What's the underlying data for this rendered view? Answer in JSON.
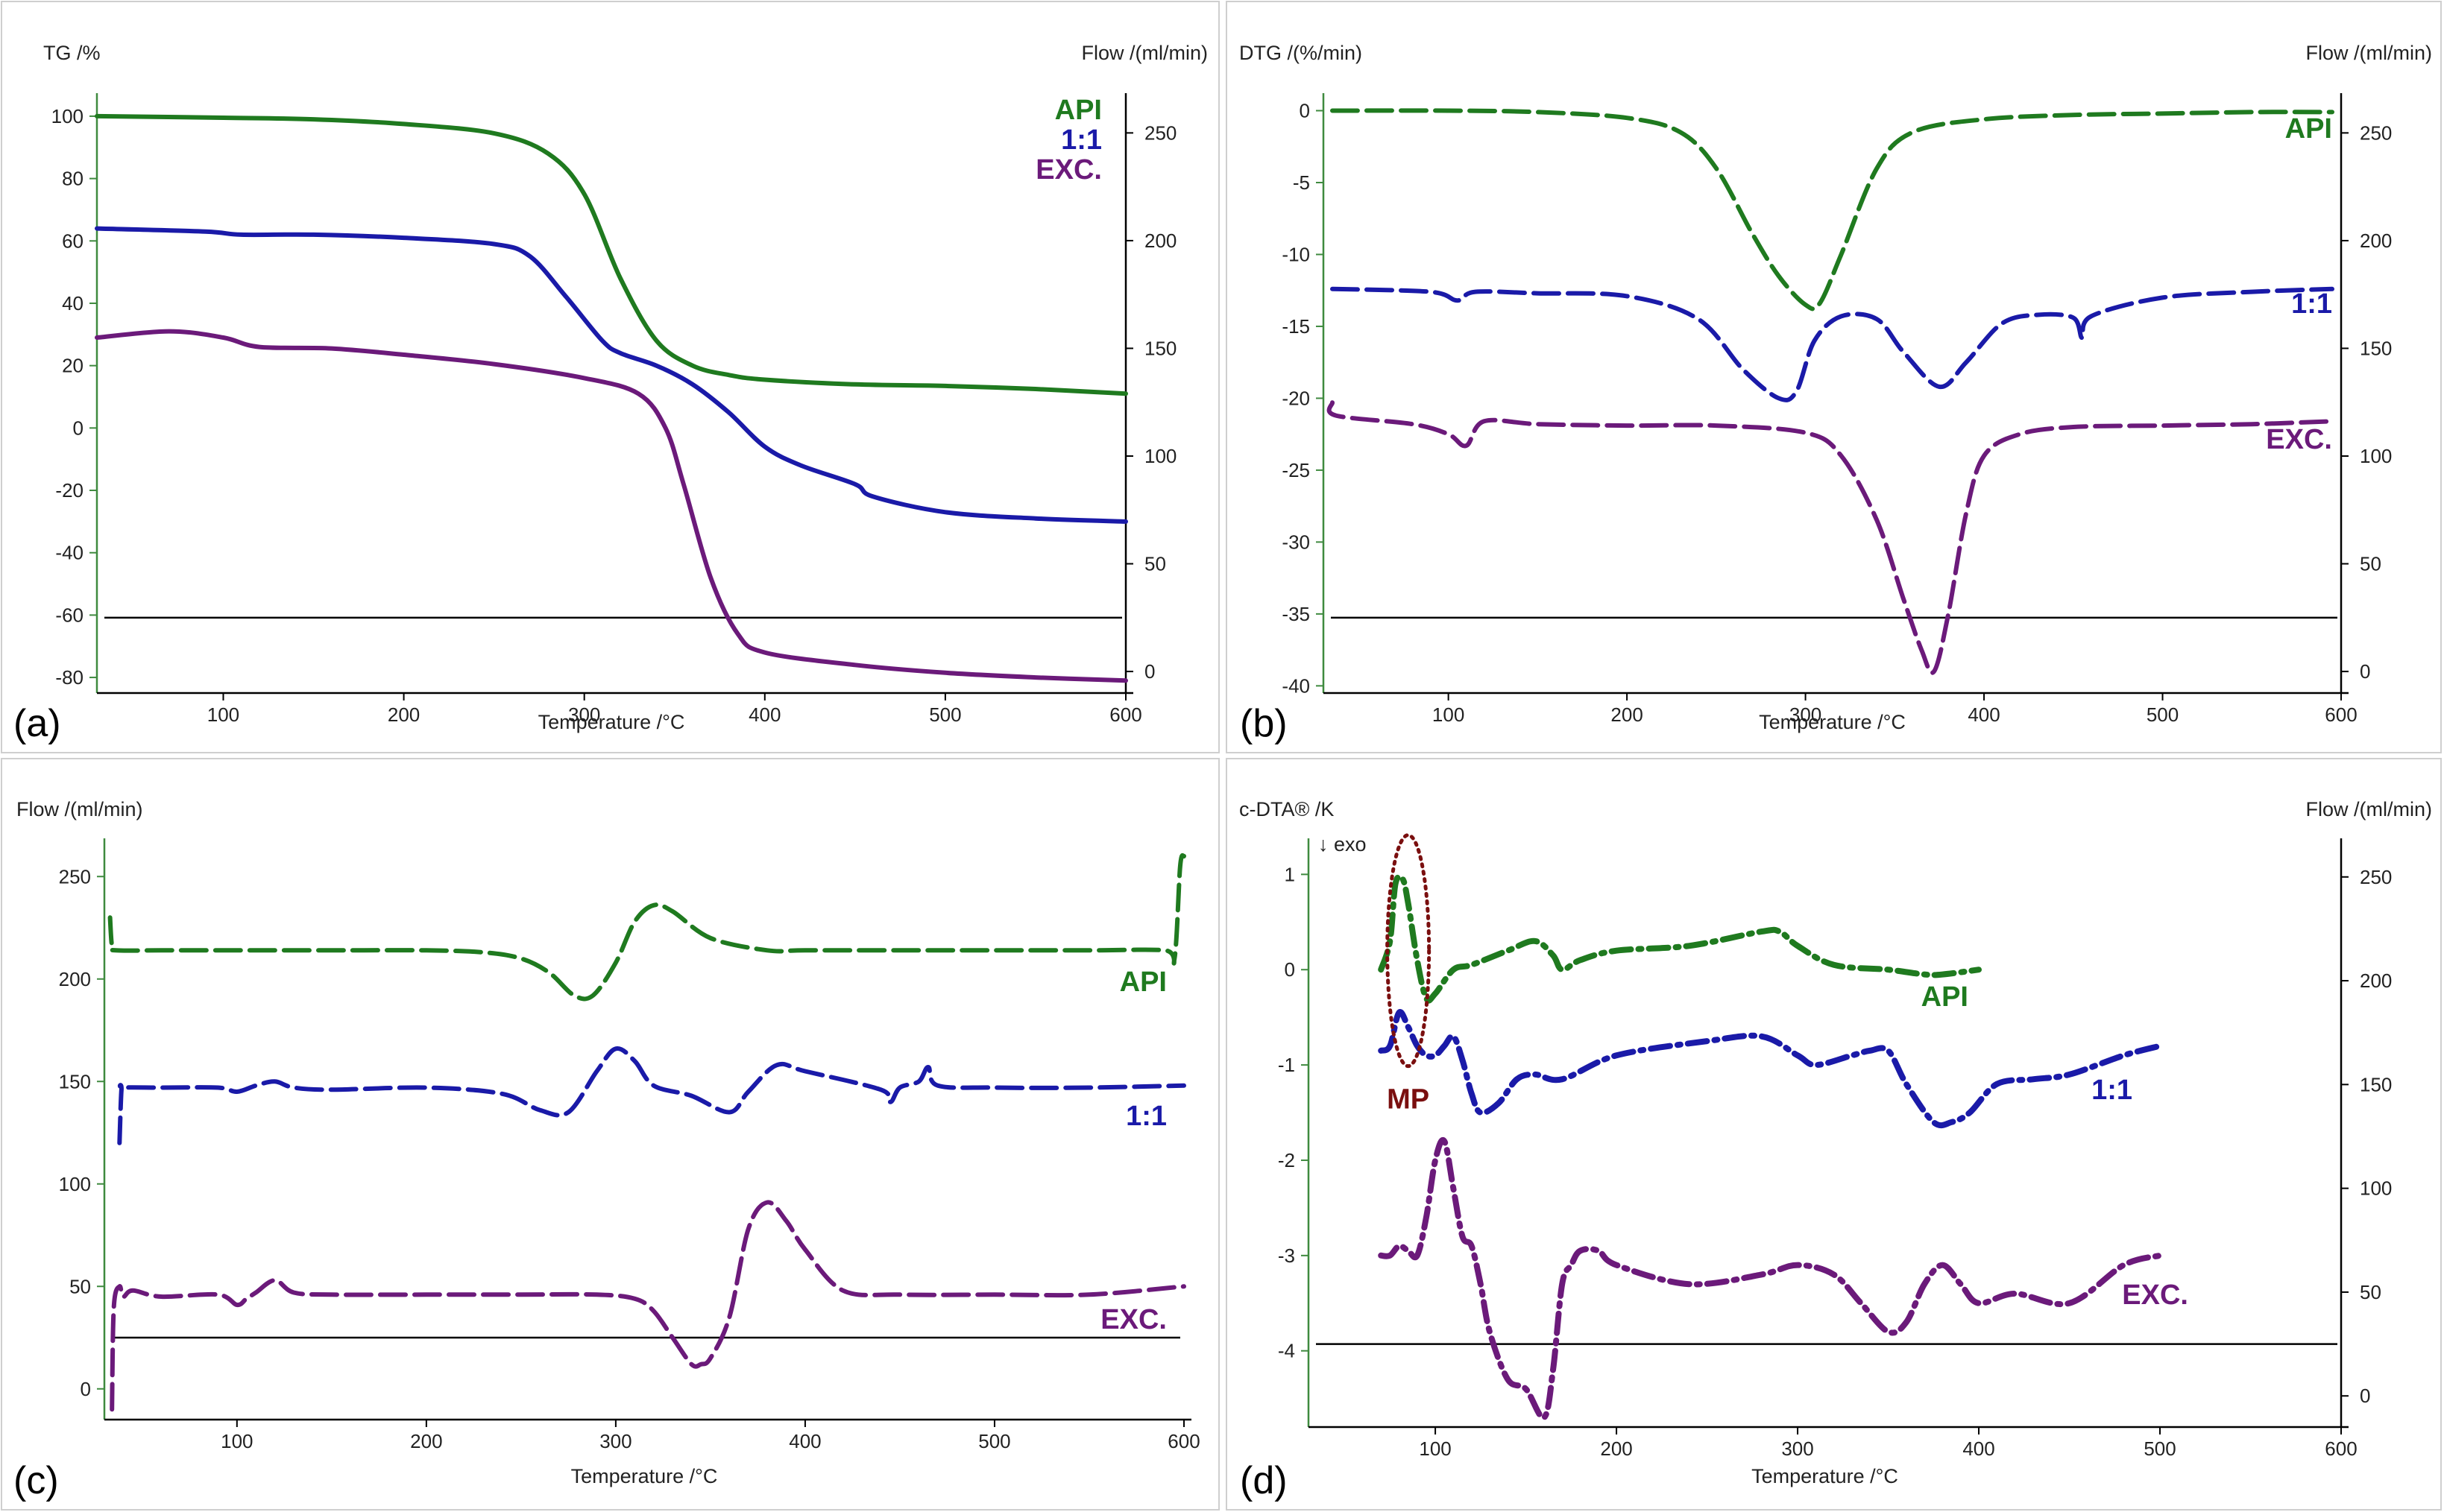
{
  "colors": {
    "api": "#1f7a1f",
    "mix": "#1a1aa8",
    "exc": "#6b1a7a",
    "mp": "#7a0f0f"
  },
  "chart_data": [
    {
      "type": "line",
      "panel_label": "(a)",
      "ylabel_left": "TG /%",
      "ylabel_right": "Flow /(ml/min)",
      "xlabel": "Temperature /°C",
      "xlim": [
        30,
        600
      ],
      "ylim_left": [
        -85,
        105
      ],
      "ylim_right": [
        -10,
        265
      ],
      "xticks": [
        100,
        200,
        300,
        400,
        500,
        600
      ],
      "yticks_left": [
        100,
        80,
        60,
        40,
        20,
        0,
        -20,
        -40,
        -60,
        -80
      ],
      "yticks_right": [
        250,
        200,
        150,
        100,
        50,
        0
      ],
      "flow_baseline": 25,
      "legend": [
        "API",
        "1:1",
        "EXC."
      ],
      "series": [
        {
          "name": "API",
          "key": "api",
          "style": "solid",
          "x": [
            30,
            100,
            150,
            200,
            250,
            280,
            300,
            320,
            340,
            360,
            380,
            400,
            450,
            500,
            550,
            600
          ],
          "y": [
            100,
            99.5,
            99,
            97.5,
            94.5,
            88,
            75,
            48,
            28,
            20,
            17,
            15.5,
            14,
            13.5,
            12.5,
            11
          ]
        },
        {
          "name": "1:1",
          "key": "mix",
          "style": "solid",
          "x": [
            30,
            90,
            110,
            150,
            200,
            250,
            270,
            290,
            310,
            320,
            340,
            360,
            380,
            400,
            420,
            450,
            460,
            500,
            550,
            600
          ],
          "y": [
            64,
            63,
            62,
            62,
            61,
            59,
            55,
            42,
            28,
            24,
            20,
            14,
            5,
            -6,
            -12,
            -18,
            -22,
            -27,
            -29,
            -30
          ]
        },
        {
          "name": "EXC.",
          "key": "exc",
          "style": "solid",
          "x": [
            30,
            70,
            100,
            120,
            160,
            200,
            250,
            300,
            330,
            345,
            355,
            370,
            385,
            400,
            450,
            500,
            550,
            600
          ],
          "y": [
            29,
            31,
            29,
            26,
            25.5,
            23.5,
            20.5,
            16,
            11,
            0,
            -18,
            -48,
            -66,
            -72,
            -76,
            -78.5,
            -80,
            -81
          ]
        }
      ]
    },
    {
      "type": "line",
      "panel_label": "(b)",
      "ylabel_left": "DTG /(%/min)",
      "ylabel_right": "Flow /(ml/min)",
      "xlabel": "Temperature /°C",
      "xlim": [
        30,
        600
      ],
      "ylim_left": [
        -40.5,
        0.7
      ],
      "ylim_right": [
        -10,
        265
      ],
      "xticks": [
        100,
        200,
        300,
        400,
        500,
        600
      ],
      "yticks_left": [
        0,
        -5,
        -10,
        -15,
        -20,
        -25,
        -30,
        -35,
        -40
      ],
      "yticks_right": [
        250,
        200,
        150,
        100,
        50,
        0
      ],
      "flow_baseline": 25,
      "legend": [
        "API",
        "1:1",
        "EXC."
      ],
      "series": [
        {
          "name": "API",
          "key": "api",
          "style": "dashed",
          "x": [
            35,
            100,
            150,
            200,
            230,
            250,
            270,
            285,
            300,
            308,
            320,
            340,
            360,
            400,
            450,
            500,
            550,
            595
          ],
          "y": [
            0,
            0,
            -0.1,
            -0.5,
            -1.5,
            -4,
            -8.5,
            -11.5,
            -13.5,
            -13.4,
            -10,
            -4,
            -1.5,
            -0.6,
            -0.3,
            -0.2,
            -0.1,
            -0.1
          ]
        },
        {
          "name": "1:1",
          "key": "mix",
          "style": "dashed",
          "x": [
            35,
            90,
            105,
            115,
            150,
            200,
            240,
            265,
            285,
            295,
            305,
            320,
            340,
            355,
            375,
            390,
            410,
            430,
            450,
            455,
            460,
            500,
            550,
            595
          ],
          "y": [
            -12.4,
            -12.6,
            -13.2,
            -12.6,
            -12.7,
            -12.9,
            -14.5,
            -18,
            -20,
            -19.5,
            -16,
            -14.3,
            -14.5,
            -16.8,
            -19.2,
            -17.5,
            -14.8,
            -14.2,
            -14.4,
            -15.8,
            -14.3,
            -13,
            -12.6,
            -12.4
          ]
        },
        {
          "name": "EXC.",
          "key": "exc",
          "style": "dashed",
          "x": [
            35,
            37,
            80,
            100,
            110,
            120,
            150,
            200,
            250,
            300,
            320,
            340,
            355,
            365,
            372,
            380,
            390,
            400,
            420,
            450,
            500,
            550,
            595
          ],
          "y": [
            -20.3,
            -21.2,
            -21.8,
            -22.5,
            -23.3,
            -21.6,
            -21.8,
            -21.9,
            -21.9,
            -22.4,
            -24,
            -28.5,
            -34,
            -37.5,
            -39,
            -35,
            -28,
            -24,
            -22.5,
            -22,
            -21.9,
            -21.8,
            -21.6
          ]
        }
      ]
    },
    {
      "type": "line",
      "panel_label": "(c)",
      "ylabel_left": "Flow /(ml/min)",
      "xlabel": "Temperature /°C",
      "xlim": [
        30,
        600
      ],
      "ylim_left": [
        -15,
        265
      ],
      "xticks": [
        100,
        200,
        300,
        400,
        500,
        600
      ],
      "yticks_left": [
        250,
        200,
        150,
        100,
        50,
        0
      ],
      "flow_baseline": 25,
      "legend": [
        "API",
        "1:1",
        "EXC."
      ],
      "series": [
        {
          "name": "API",
          "key": "api",
          "style": "dashed",
          "x": [
            33,
            34,
            36,
            60,
            100,
            150,
            200,
            230,
            250,
            265,
            278,
            288,
            300,
            310,
            320,
            330,
            350,
            380,
            400,
            450,
            500,
            550,
            590,
            595,
            598,
            600
          ],
          "y": [
            230,
            216,
            214,
            214,
            214,
            214,
            214,
            213,
            210,
            203,
            192,
            192,
            208,
            228,
            236,
            233,
            220,
            214,
            214,
            214,
            214,
            214,
            214,
            210,
            255,
            260
          ]
        },
        {
          "name": "1:1",
          "key": "mix",
          "style": "dashed",
          "x": [
            38,
            39,
            40,
            60,
            90,
            100,
            110,
            120,
            130,
            150,
            200,
            240,
            260,
            275,
            290,
            300,
            310,
            320,
            340,
            360,
            370,
            385,
            400,
            440,
            445,
            450,
            460,
            465,
            470,
            500,
            550,
            600
          ],
          "y": [
            120,
            146,
            147,
            147,
            147,
            145,
            148,
            150,
            147,
            146,
            147,
            144,
            136,
            135,
            155,
            166,
            160,
            148,
            143,
            135,
            145,
            158,
            155,
            146,
            140,
            147,
            150,
            157,
            148,
            147,
            147,
            148
          ]
        },
        {
          "name": "EXC.",
          "key": "exc",
          "style": "dashed",
          "x": [
            34,
            35,
            38,
            40,
            45,
            60,
            90,
            100,
            105,
            110,
            120,
            130,
            150,
            200,
            250,
            290,
            310,
            320,
            330,
            340,
            345,
            350,
            360,
            370,
            380,
            390,
            400,
            420,
            450,
            500,
            550,
            600
          ],
          "y": [
            -10,
            40,
            50,
            45,
            48,
            45,
            46,
            41,
            44,
            47,
            53,
            47,
            46,
            46,
            46,
            46,
            44,
            38,
            25,
            12,
            12,
            15,
            35,
            78,
            91,
            82,
            68,
            48,
            46,
            46,
            46,
            50
          ]
        }
      ]
    },
    {
      "type": "line",
      "panel_label": "(d)",
      "ylabel_left": "c-DTA® /K",
      "ylabel_right": "Flow /(ml/min)",
      "xlabel": "Temperature /°C",
      "annotation_top": "↓ exo",
      "annotation_mp": "MP",
      "xlim": [
        30,
        600
      ],
      "ylim_left": [
        -4.8,
        1.3
      ],
      "ylim_right": [
        -15,
        265
      ],
      "xticks": [
        100,
        200,
        300,
        400,
        500,
        600
      ],
      "yticks_left": [
        1,
        0,
        -1,
        -2,
        -3,
        -4
      ],
      "yticks_right": [
        250,
        200,
        150,
        100,
        50,
        0
      ],
      "flow_baseline": 25,
      "legend": [
        "API",
        "1:1",
        "EXC."
      ],
      "series": [
        {
          "name": "API",
          "key": "api",
          "style": "dashdot",
          "x": [
            70,
            75,
            78,
            82,
            85,
            90,
            95,
            100,
            110,
            120,
            140,
            155,
            165,
            170,
            180,
            200,
            240,
            280,
            290,
            300,
            320,
            350,
            370,
            380,
            400
          ],
          "y": [
            0,
            0.3,
            0.9,
            0.95,
            0.7,
            0.1,
            -0.3,
            -0.25,
            0,
            0.05,
            0.2,
            0.3,
            0.15,
            0,
            0.1,
            0.2,
            0.25,
            0.4,
            0.4,
            0.25,
            0.05,
            0,
            -0.05,
            -0.05,
            0
          ]
        },
        {
          "name": "1:1",
          "key": "mix",
          "style": "dashdot",
          "x": [
            70,
            75,
            80,
            85,
            90,
            95,
            100,
            105,
            110,
            115,
            120,
            125,
            135,
            145,
            155,
            170,
            200,
            250,
            280,
            300,
            310,
            330,
            340,
            350,
            360,
            375,
            385,
            395,
            410,
            430,
            450,
            480,
            500
          ],
          "y": [
            -0.85,
            -0.8,
            -0.45,
            -0.6,
            -0.8,
            -0.9,
            -0.9,
            -0.8,
            -0.7,
            -0.95,
            -1.3,
            -1.5,
            -1.4,
            -1.15,
            -1.1,
            -1.15,
            -0.9,
            -0.75,
            -0.7,
            -0.9,
            -1.0,
            -0.9,
            -0.85,
            -0.85,
            -1.2,
            -1.6,
            -1.6,
            -1.5,
            -1.2,
            -1.15,
            -1.1,
            -0.9,
            -0.8
          ]
        },
        {
          "name": "EXC.",
          "key": "exc",
          "style": "dashdot",
          "x": [
            70,
            75,
            80,
            85,
            90,
            95,
            100,
            105,
            110,
            115,
            120,
            125,
            130,
            140,
            150,
            160,
            165,
            170,
            175,
            180,
            190,
            200,
            240,
            280,
            300,
            320,
            335,
            350,
            360,
            370,
            380,
            390,
            400,
            420,
            450,
            480,
            500
          ],
          "y": [
            -3,
            -3,
            -2.9,
            -2.95,
            -3,
            -2.6,
            -2,
            -1.8,
            -2.3,
            -2.8,
            -2.9,
            -3.3,
            -3.8,
            -4.3,
            -4.4,
            -4.7,
            -4.2,
            -3.3,
            -3.1,
            -2.95,
            -2.95,
            -3.1,
            -3.3,
            -3.2,
            -3.1,
            -3.2,
            -3.5,
            -3.8,
            -3.7,
            -3.3,
            -3.1,
            -3.3,
            -3.5,
            -3.4,
            -3.5,
            -3.1,
            -3
          ]
        }
      ]
    }
  ]
}
